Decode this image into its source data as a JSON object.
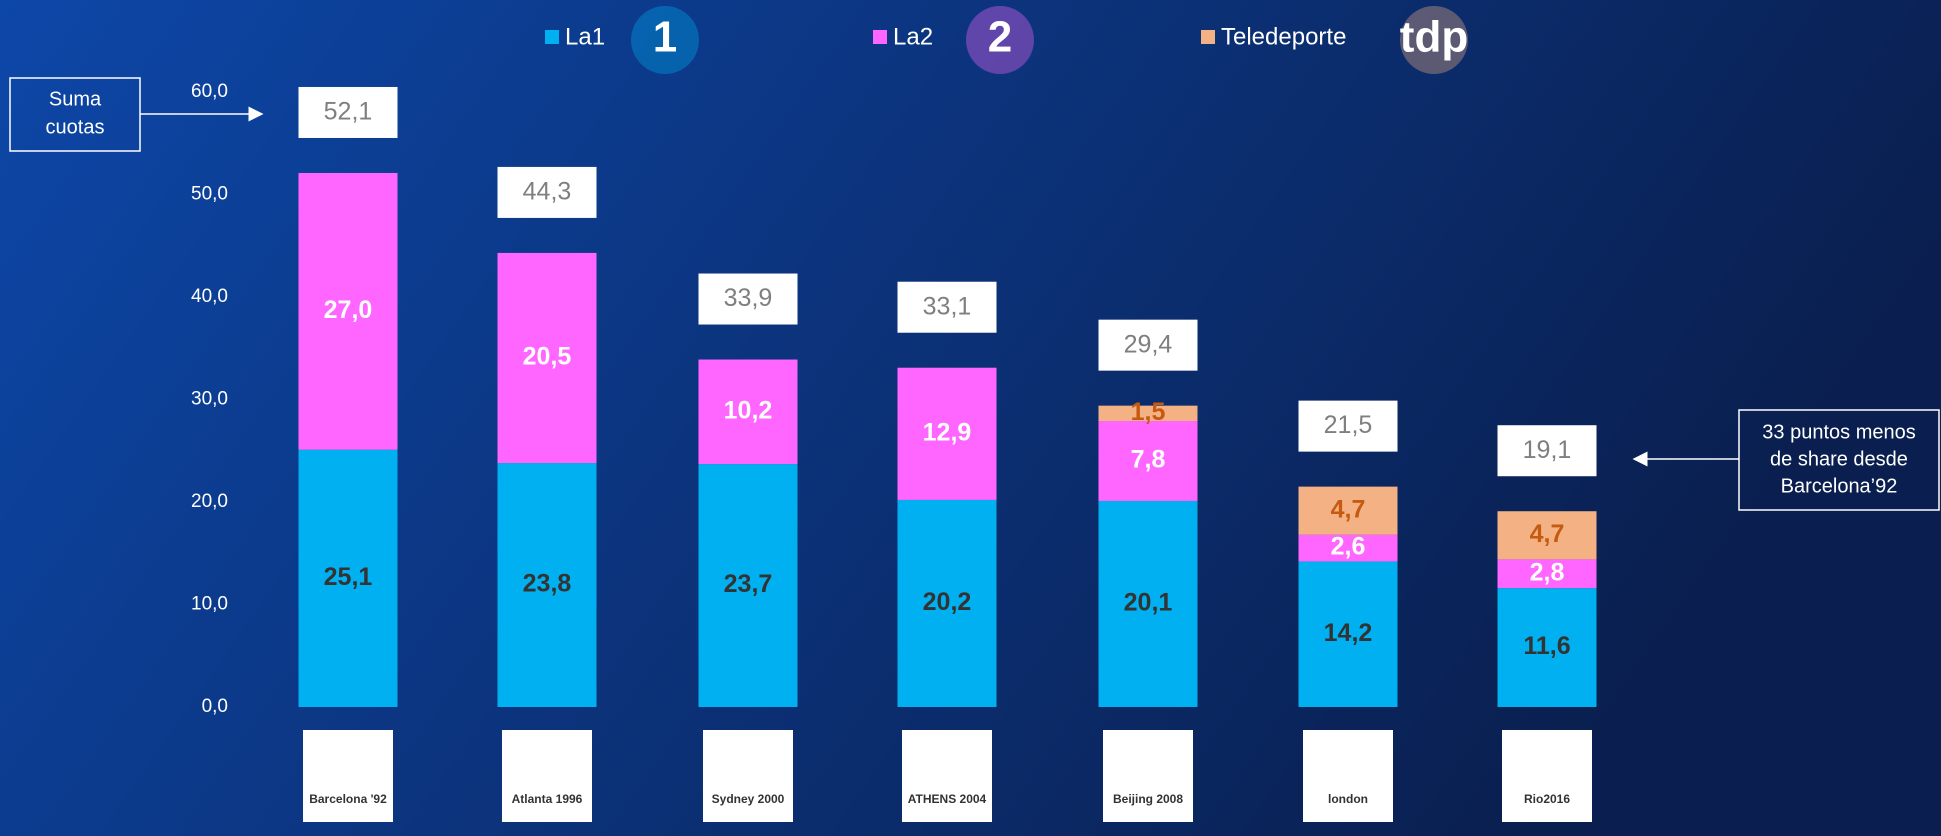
{
  "chart_data": {
    "type": "stacked_bar",
    "categories": [
      "Barcelona '92",
      "Atlanta 1996",
      "Sydney 2000",
      "ATHENS 2004",
      "Beijing 2008",
      "london",
      "Rio2016"
    ],
    "series": [
      {
        "name": "La1",
        "logo": "1",
        "color": "#00b0f0",
        "label_color": "#333333",
        "values": [
          25.1,
          23.8,
          23.7,
          20.2,
          20.1,
          14.2,
          11.6
        ],
        "value_labels": [
          "25,1",
          "23,8",
          "23,7",
          "20,2",
          "20,1",
          "14,2",
          "11,6"
        ]
      },
      {
        "name": "La2",
        "logo": "2",
        "color": "#ff66ff",
        "label_color": "#ffffff",
        "values": [
          27.0,
          20.5,
          10.2,
          12.9,
          7.8,
          2.6,
          2.8
        ],
        "value_labels": [
          "27,0",
          "20,5",
          "10,2",
          "12,9",
          "7,8",
          "2,6",
          "2,8"
        ]
      },
      {
        "name": "Teledeporte",
        "logo": "tdp",
        "color": "#f4b183",
        "label_color": "#c55a11",
        "values": [
          null,
          null,
          null,
          null,
          1.5,
          4.7,
          4.7
        ],
        "value_labels": [
          null,
          null,
          null,
          null,
          "1,5",
          "4,7",
          "4,7"
        ]
      }
    ],
    "totals": [
      52.1,
      44.3,
      33.9,
      33.1,
      29.4,
      21.5,
      19.1
    ],
    "total_labels": [
      "52,1",
      "44,3",
      "33,9",
      "33,1",
      "29,4",
      "21,5",
      "19,1"
    ],
    "ylim": [
      0,
      60
    ],
    "yticks": [
      {
        "value": 0,
        "label": "0,0"
      },
      {
        "value": 10,
        "label": "10,0"
      },
      {
        "value": 20,
        "label": "20,0"
      },
      {
        "value": 30,
        "label": "30,0"
      },
      {
        "value": 40,
        "label": "40,0"
      },
      {
        "value": 50,
        "label": "50,0"
      },
      {
        "value": 60,
        "label": "60,0"
      }
    ],
    "grid": false,
    "annotations": [
      {
        "lines": [
          "Suma",
          "cuotas"
        ]
      },
      {
        "lines": [
          "33 puntos menos",
          "de share desde",
          "Barcelona’92"
        ]
      }
    ]
  }
}
